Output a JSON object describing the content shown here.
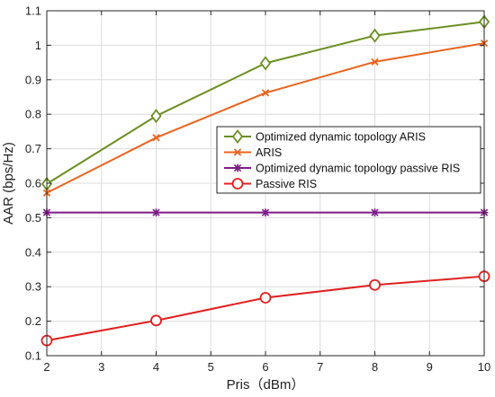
{
  "chart_data": {
    "type": "line",
    "xlabel": "Pris（dBm）",
    "ylabel": "AAR (bps/Hz)",
    "xlim": [
      2,
      10
    ],
    "ylim": [
      0.1,
      1.1
    ],
    "xticks": [
      "2",
      "3",
      "4",
      "5",
      "6",
      "7",
      "8",
      "9",
      "10"
    ],
    "yticks": [
      "0.1",
      "0.2",
      "0.3",
      "0.4",
      "0.5",
      "0.6",
      "0.7",
      "0.8",
      "0.9",
      "1",
      "1.1"
    ],
    "grid": true,
    "legend_position": "right",
    "x": [
      2,
      4,
      6,
      8,
      10
    ],
    "series": [
      {
        "name": "Optimized dynamic topology ARIS",
        "values": [
          0.598,
          0.795,
          0.948,
          1.028,
          1.068
        ],
        "color": "#6b8e23",
        "marker": "diamond"
      },
      {
        "name": "ARIS",
        "values": [
          0.572,
          0.732,
          0.862,
          0.952,
          1.006
        ],
        "color": "#e8641f",
        "marker": "x"
      },
      {
        "name": "Optimized dynamic topology passive RIS",
        "values": [
          0.515,
          0.515,
          0.515,
          0.515,
          0.515
        ],
        "color": "#7d1c87",
        "marker": "star"
      },
      {
        "name": "Passive RIS",
        "values": [
          0.144,
          0.202,
          0.268,
          0.305,
          0.33
        ],
        "color": "#e02020",
        "marker": "circle"
      }
    ]
  }
}
